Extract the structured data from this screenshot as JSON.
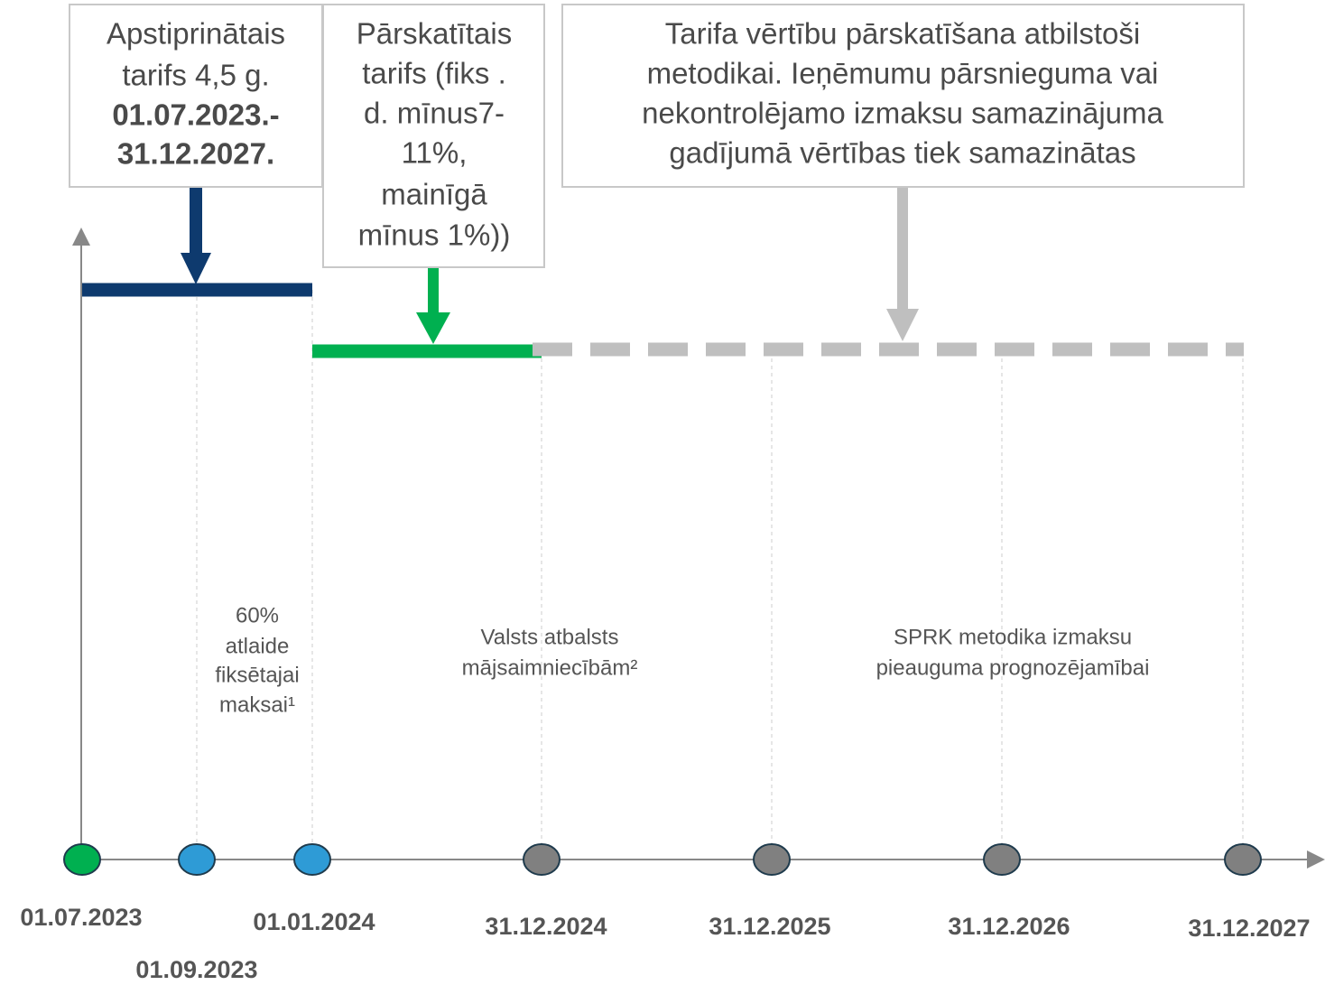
{
  "boxes": [
    {
      "lines": [
        "Apstiprinātais",
        "tarifs 4,5 g.",
        "01.07.2023.-",
        "31.12.2027."
      ]
    },
    {
      "lines": [
        "Pārskatītais",
        "tarifs (fiks .",
        "d. mīnus7-",
        "11%,",
        "mainīgā",
        "mīnus 1%))"
      ]
    },
    {
      "lines": [
        "Tarifa vērtību pārskatīšana atbilstoši",
        "metodikai. Ieņēmumu pārsnieguma vai",
        "nekontrolējamo izmaksu samazinājuma",
        "gadījumā vērtības tiek samazinātas"
      ]
    }
  ],
  "notes": [
    {
      "lines": [
        "60%",
        "atlaide",
        "fiksētajai",
        "maksai¹"
      ]
    },
    {
      "lines": [
        "Valsts atbalsts",
        "mājsaimniecībām²"
      ]
    },
    {
      "lines": [
        "SPRK metodika izmaksu",
        "pieauguma prognozējamībai"
      ]
    }
  ],
  "dates": [
    "01.07.2023",
    "01.09.2023",
    "01.01.2024",
    "31.12.2024",
    "31.12.2025",
    "31.12.2026",
    "31.12.2027"
  ]
}
